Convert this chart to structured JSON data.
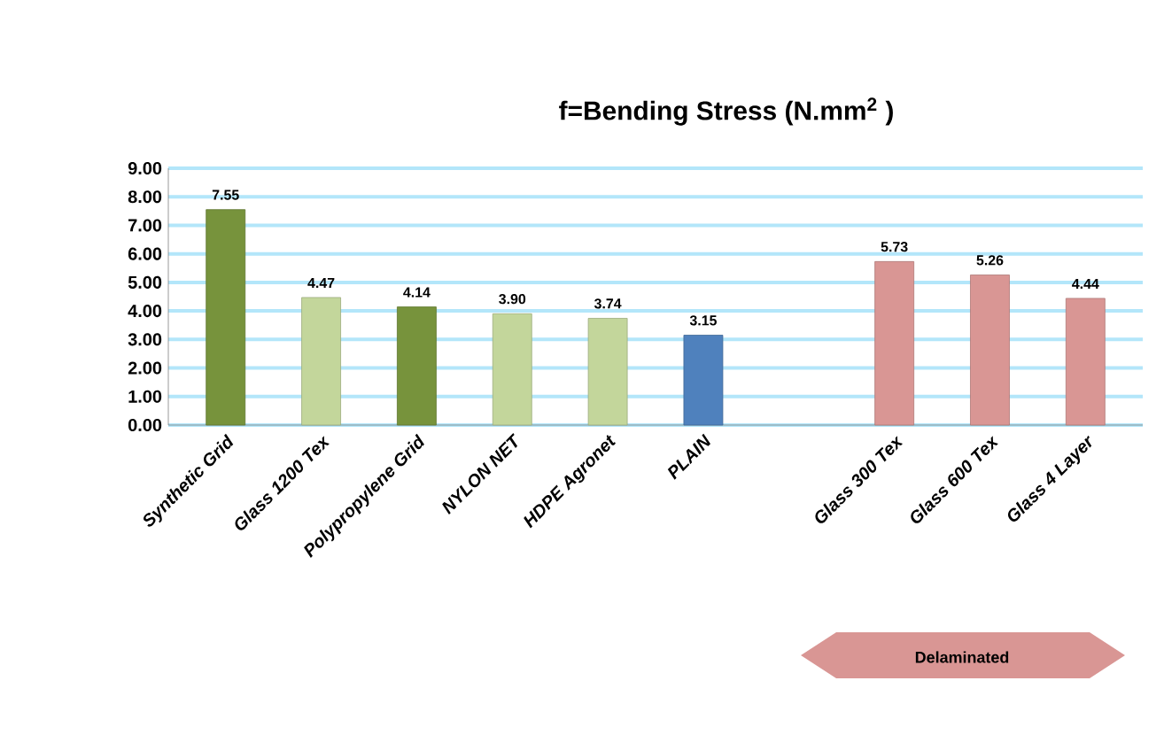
{
  "chart_data": {
    "type": "bar",
    "title": "f=Bending Stress (N.mm$^{2}$ )",
    "categories": [
      "Synthetic Grid",
      "Glass 1200 Tex",
      "Polypropylene Grid",
      "NYLON NET",
      "HDPE Agronet",
      "PLAIN",
      null,
      "Glass  300 Tex",
      "Glass  600 Tex",
      "Glass  4 Layer"
    ],
    "values": [
      7.55,
      4.47,
      4.14,
      3.9,
      3.74,
      3.15,
      null,
      5.73,
      5.26,
      4.44
    ],
    "colors": [
      "#77933c",
      "#c3d69b",
      "#77933c",
      "#c3d69b",
      "#c3d69b",
      "#4f81bd",
      null,
      "#d99694",
      "#d99694",
      "#d99694"
    ],
    "value_labels": [
      "7.55",
      "4.47",
      "4.14",
      "3.90",
      "3.74",
      "3.15",
      null,
      "5.73",
      "5.26",
      "4.44"
    ],
    "ylim": [
      0,
      9
    ],
    "yticks": [
      {
        "value": 0,
        "label": "0.00"
      },
      {
        "value": 1,
        "label": "1.00"
      },
      {
        "value": 2,
        "label": "2.00"
      },
      {
        "value": 3,
        "label": "3.00"
      },
      {
        "value": 4,
        "label": "4.00"
      },
      {
        "value": 5,
        "label": "5.00"
      },
      {
        "value": 6,
        "label": "6.00"
      },
      {
        "value": 7,
        "label": "7.00"
      },
      {
        "value": 8,
        "label": "8.00"
      },
      {
        "value": 9,
        "label": "9.00"
      }
    ],
    "grid": "y",
    "annotations": [
      "Delaminated"
    ]
  }
}
